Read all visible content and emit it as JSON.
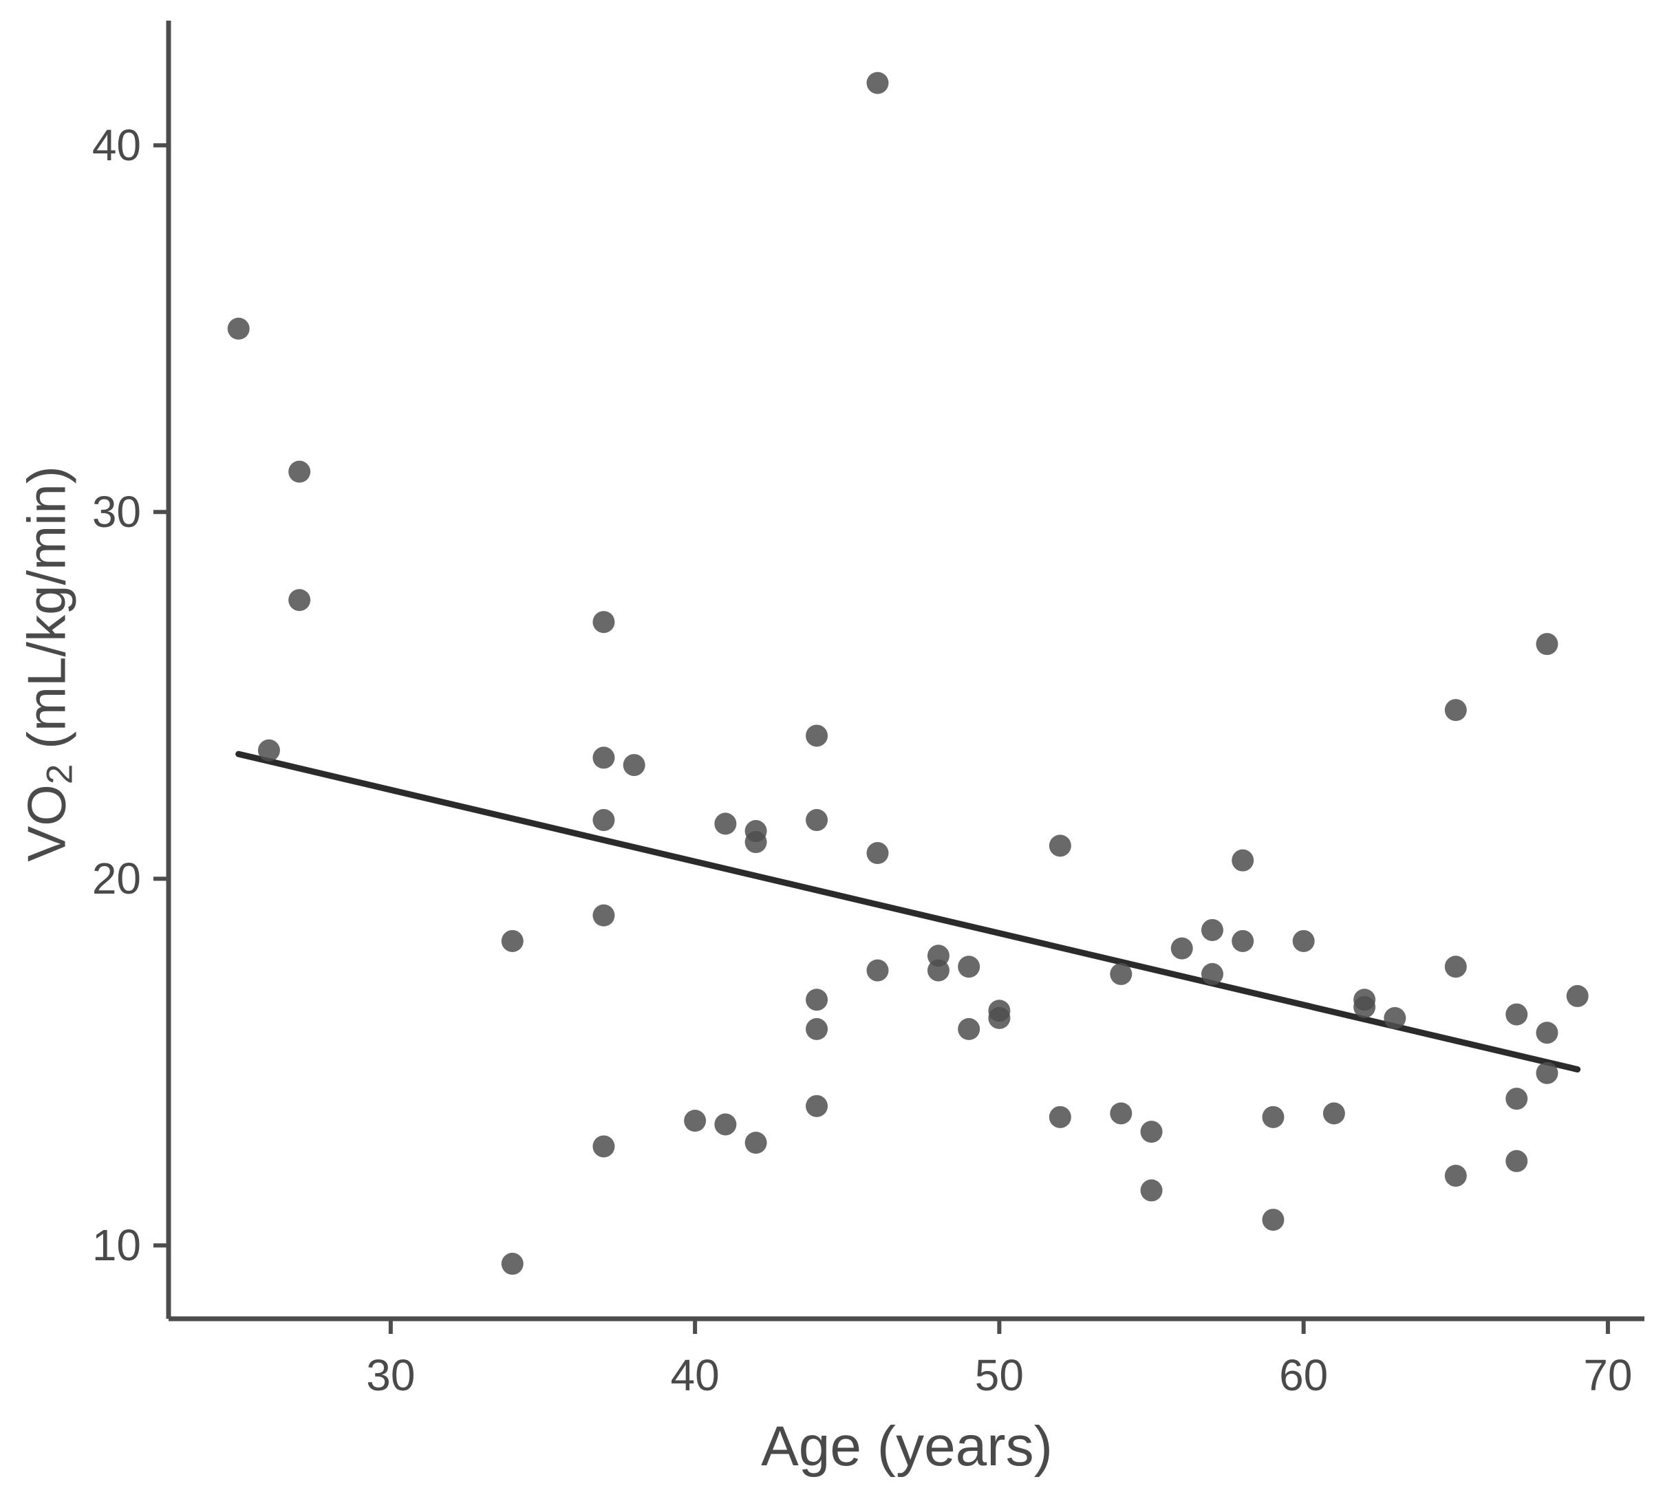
{
  "chart_data": {
    "type": "scatter",
    "title": "",
    "xlabel": "Age (years)",
    "ylabel": "VO2 (mL/kg/min)",
    "ylabel_base": "VO",
    "ylabel_sub": "2",
    "ylabel_rest": " (mL/kg/min)",
    "x_ticks": [
      30,
      40,
      50,
      60,
      70
    ],
    "y_ticks": [
      10,
      20,
      30,
      40
    ],
    "xlim": [
      22.7,
      71.2
    ],
    "ylim": [
      8.0,
      43.4
    ],
    "grid": false,
    "legend": "none",
    "points": [
      [
        25,
        35.0
      ],
      [
        26,
        23.5
      ],
      [
        27,
        31.1
      ],
      [
        27,
        27.6
      ],
      [
        34,
        18.3
      ],
      [
        34,
        9.5
      ],
      [
        37,
        27.0
      ],
      [
        37,
        23.3
      ],
      [
        37,
        21.6
      ],
      [
        37,
        19.0
      ],
      [
        37,
        12.7
      ],
      [
        38,
        23.1
      ],
      [
        40,
        13.4
      ],
      [
        41,
        21.5
      ],
      [
        41,
        13.3
      ],
      [
        42,
        21.3
      ],
      [
        42,
        21.0
      ],
      [
        42,
        12.8
      ],
      [
        44,
        23.9
      ],
      [
        44,
        21.6
      ],
      [
        44,
        16.7
      ],
      [
        44,
        15.9
      ],
      [
        44,
        13.8
      ],
      [
        46,
        41.7
      ],
      [
        46,
        20.7
      ],
      [
        46,
        17.5
      ],
      [
        48,
        17.9
      ],
      [
        48,
        17.5
      ],
      [
        49,
        17.6
      ],
      [
        49,
        15.9
      ],
      [
        50,
        16.4
      ],
      [
        50,
        16.2
      ],
      [
        52,
        20.9
      ],
      [
        52,
        13.5
      ],
      [
        54,
        17.4
      ],
      [
        54,
        13.6
      ],
      [
        55,
        13.1
      ],
      [
        55,
        11.5
      ],
      [
        56,
        18.1
      ],
      [
        57,
        18.6
      ],
      [
        57,
        17.4
      ],
      [
        58,
        20.5
      ],
      [
        58,
        18.3
      ],
      [
        59,
        13.5
      ],
      [
        59,
        10.7
      ],
      [
        60,
        18.3
      ],
      [
        61,
        13.6
      ],
      [
        62,
        16.7
      ],
      [
        62,
        16.5
      ],
      [
        63,
        16.2
      ],
      [
        65,
        24.6
      ],
      [
        65,
        17.6
      ],
      [
        65,
        11.9
      ],
      [
        67,
        16.3
      ],
      [
        67,
        14.0
      ],
      [
        67,
        12.3
      ],
      [
        68,
        26.4
      ],
      [
        68,
        15.8
      ],
      [
        68,
        14.7
      ],
      [
        69,
        16.8
      ]
    ],
    "trend_line": {
      "x1": 25,
      "y1": 23.4,
      "x2": 69,
      "y2": 14.8
    },
    "point_color": "#4f4f4f",
    "point_opacity": 0.85,
    "line_color": "#2b2b2b",
    "axis_color": "#4d4d4d",
    "text_color": "#4a4a4a"
  }
}
